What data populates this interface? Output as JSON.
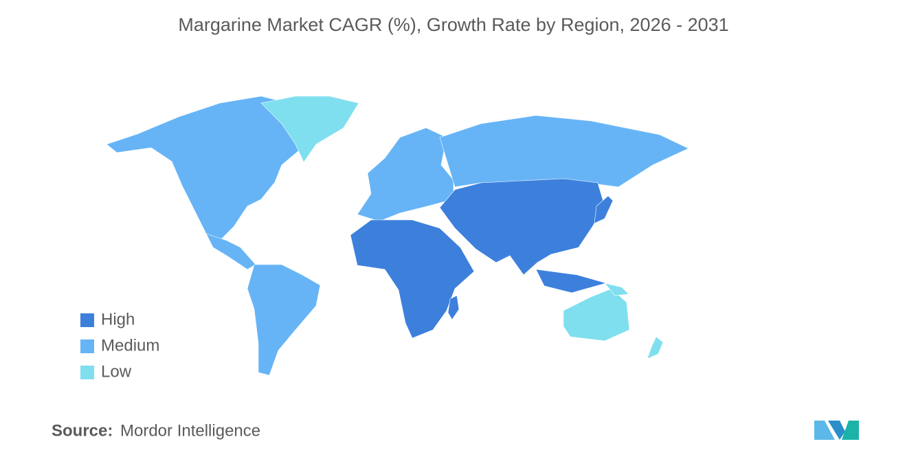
{
  "title": "Margarine Market CAGR (%), Growth Rate by Region, 2026 - 2031",
  "legend": [
    {
      "label": "High",
      "color": "#3d80dc"
    },
    {
      "label": "Medium",
      "color": "#66b4f6"
    },
    {
      "label": "Low",
      "color": "#7fdfee"
    }
  ],
  "source": {
    "label": "Source:",
    "value": "Mordor Intelligence"
  }
}
